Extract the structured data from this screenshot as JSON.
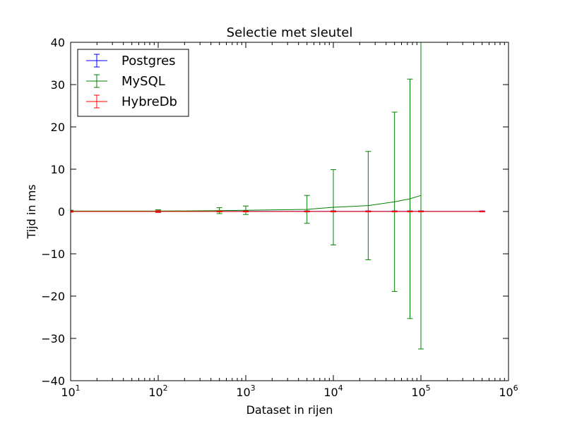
{
  "chart_data": {
    "type": "line",
    "title": "Selectie met sleutel",
    "xlabel": "Dataset in rijen",
    "ylabel": "Tijd in ms",
    "xscale": "log",
    "xlim": [
      10,
      1000000
    ],
    "ylim": [
      -40,
      40
    ],
    "xticks": [
      {
        "value": 10,
        "base": "10",
        "exp": "1"
      },
      {
        "value": 100,
        "base": "10",
        "exp": "2"
      },
      {
        "value": 1000,
        "base": "10",
        "exp": "3"
      },
      {
        "value": 10000,
        "base": "10",
        "exp": "4"
      },
      {
        "value": 100000,
        "base": "10",
        "exp": "5"
      },
      {
        "value": 1000000,
        "base": "10",
        "exp": "6"
      }
    ],
    "yticks": [
      {
        "value": 40,
        "label": "40"
      },
      {
        "value": 30,
        "label": "30"
      },
      {
        "value": 20,
        "label": "20"
      },
      {
        "value": 10,
        "label": "10"
      },
      {
        "value": 0,
        "label": "0"
      },
      {
        "value": -10,
        "label": "−10"
      },
      {
        "value": -20,
        "label": "−20"
      },
      {
        "value": -30,
        "label": "−30"
      },
      {
        "value": -40,
        "label": "−40"
      }
    ],
    "grid": false,
    "legend_position": "top-left",
    "series": [
      {
        "name": "Postgres",
        "color": "#0000ff",
        "x": [
          10,
          100,
          500,
          1000,
          5000,
          10000,
          25000,
          50000,
          75000,
          100000,
          500000
        ],
        "y": [
          0.05,
          0.05,
          0.05,
          0.05,
          0.05,
          0.05,
          0.05,
          0.05,
          0.05,
          0.05,
          0.05
        ],
        "err": [
          0.1,
          0.1,
          0.1,
          0.1,
          0.1,
          0.1,
          0.1,
          0.1,
          0.1,
          0.1,
          0.1
        ]
      },
      {
        "name": "MySQL",
        "color": "#008000",
        "x": [
          10,
          100,
          500,
          1000,
          5000,
          10000,
          25000,
          50000,
          75000,
          100000
        ],
        "y": [
          0.1,
          0.1,
          0.2,
          0.3,
          0.5,
          1.0,
          1.4,
          2.3,
          3.0,
          3.8
        ],
        "err": [
          0.2,
          0.3,
          0.7,
          1.0,
          3.3,
          8.9,
          12.8,
          21.2,
          28.3,
          36.3
        ]
      },
      {
        "name": "HybreDb",
        "color": "#ff0000",
        "x": [
          10,
          100,
          500,
          1000,
          5000,
          10000,
          25000,
          50000,
          75000,
          100000,
          500000
        ],
        "y": [
          0.0,
          0.0,
          0.0,
          0.0,
          0.0,
          0.0,
          0.0,
          0.0,
          0.0,
          0.0,
          0.0
        ],
        "err": [
          0.15,
          0.2,
          0.1,
          0.1,
          0.1,
          0.1,
          0.1,
          0.1,
          0.1,
          0.1,
          0.1
        ]
      }
    ]
  }
}
